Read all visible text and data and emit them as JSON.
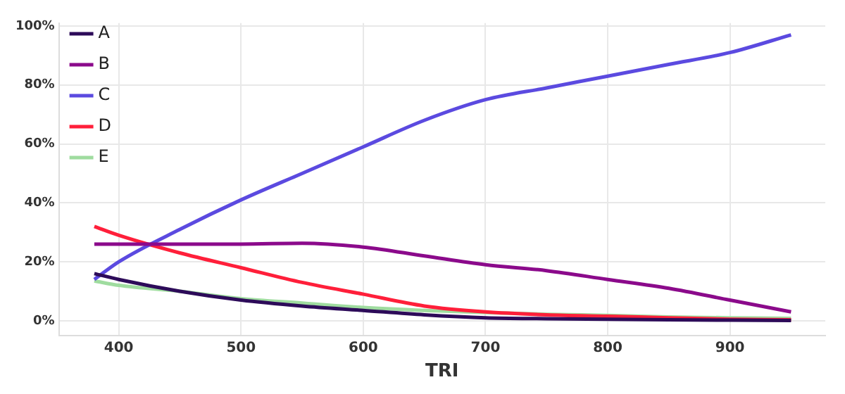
{
  "chart_data": {
    "type": "line",
    "xlabel": "TRI",
    "x": [
      380,
      400,
      450,
      500,
      550,
      600,
      650,
      700,
      750,
      800,
      850,
      900,
      950
    ],
    "series": [
      {
        "name": "A",
        "color": "#2d0b59",
        "values": [
          16,
          14,
          10,
          7,
          5,
          3.5,
          2,
          1,
          0.7,
          0.5,
          0.3,
          0.2,
          0.1
        ]
      },
      {
        "name": "B",
        "color": "#8b0a8b",
        "values": [
          26,
          26,
          26,
          26,
          26.3,
          25,
          22,
          19,
          17,
          14,
          11,
          7,
          3
        ]
      },
      {
        "name": "C",
        "color": "#5b4ae0",
        "values": [
          14,
          20,
          31,
          41,
          50,
          59,
          68,
          75,
          79,
          83,
          87,
          91,
          97
        ]
      },
      {
        "name": "D",
        "color": "#ff1f3a",
        "values": [
          32,
          29,
          23,
          18,
          13,
          9,
          5,
          3,
          2,
          1.5,
          1,
          0.5,
          0.3
        ]
      },
      {
        "name": "E",
        "color": "#9fdc9f",
        "values": [
          13.5,
          12,
          10,
          7.5,
          6,
          4.5,
          3.5,
          2.8,
          2.2,
          1.8,
          1.3,
          1,
          0.8
        ]
      }
    ],
    "xlim": [
      351,
      978
    ],
    "xticks": [
      400,
      500,
      600,
      700,
      800,
      900
    ],
    "ylim": [
      -5,
      101
    ],
    "yticks": [
      {
        "value": 0,
        "label": "0%"
      },
      {
        "value": 20,
        "label": "20%"
      },
      {
        "value": 40,
        "label": "40%"
      },
      {
        "value": 60,
        "label": "60%"
      },
      {
        "value": 80,
        "label": "80%"
      },
      {
        "value": 100,
        "label": "100%"
      }
    ],
    "grid": true,
    "legend": "top left",
    "marker": "none",
    "line_style": "solid"
  }
}
